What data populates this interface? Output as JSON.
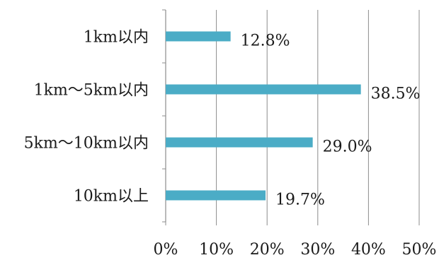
{
  "chart_data": {
    "type": "bar",
    "orientation": "horizontal",
    "categories": [
      "1km以内",
      "1km～5km以内",
      "5km～10km以内",
      "10km以上"
    ],
    "values": [
      12.8,
      38.5,
      29.0,
      19.7
    ],
    "value_labels": [
      "12.8%",
      "38.5%",
      "29.0%",
      "19.7%"
    ],
    "xlim": [
      0,
      50
    ],
    "x_ticks": [
      0,
      10,
      20,
      30,
      40,
      50
    ],
    "x_tick_labels": [
      "0%",
      "10%",
      "20%",
      "30%",
      "40%",
      "50%"
    ],
    "grid": true,
    "legend": "none",
    "colors": {
      "bar": "#4bacc6",
      "grid": "#8c8c8c",
      "text": "#1a1a1a"
    }
  }
}
